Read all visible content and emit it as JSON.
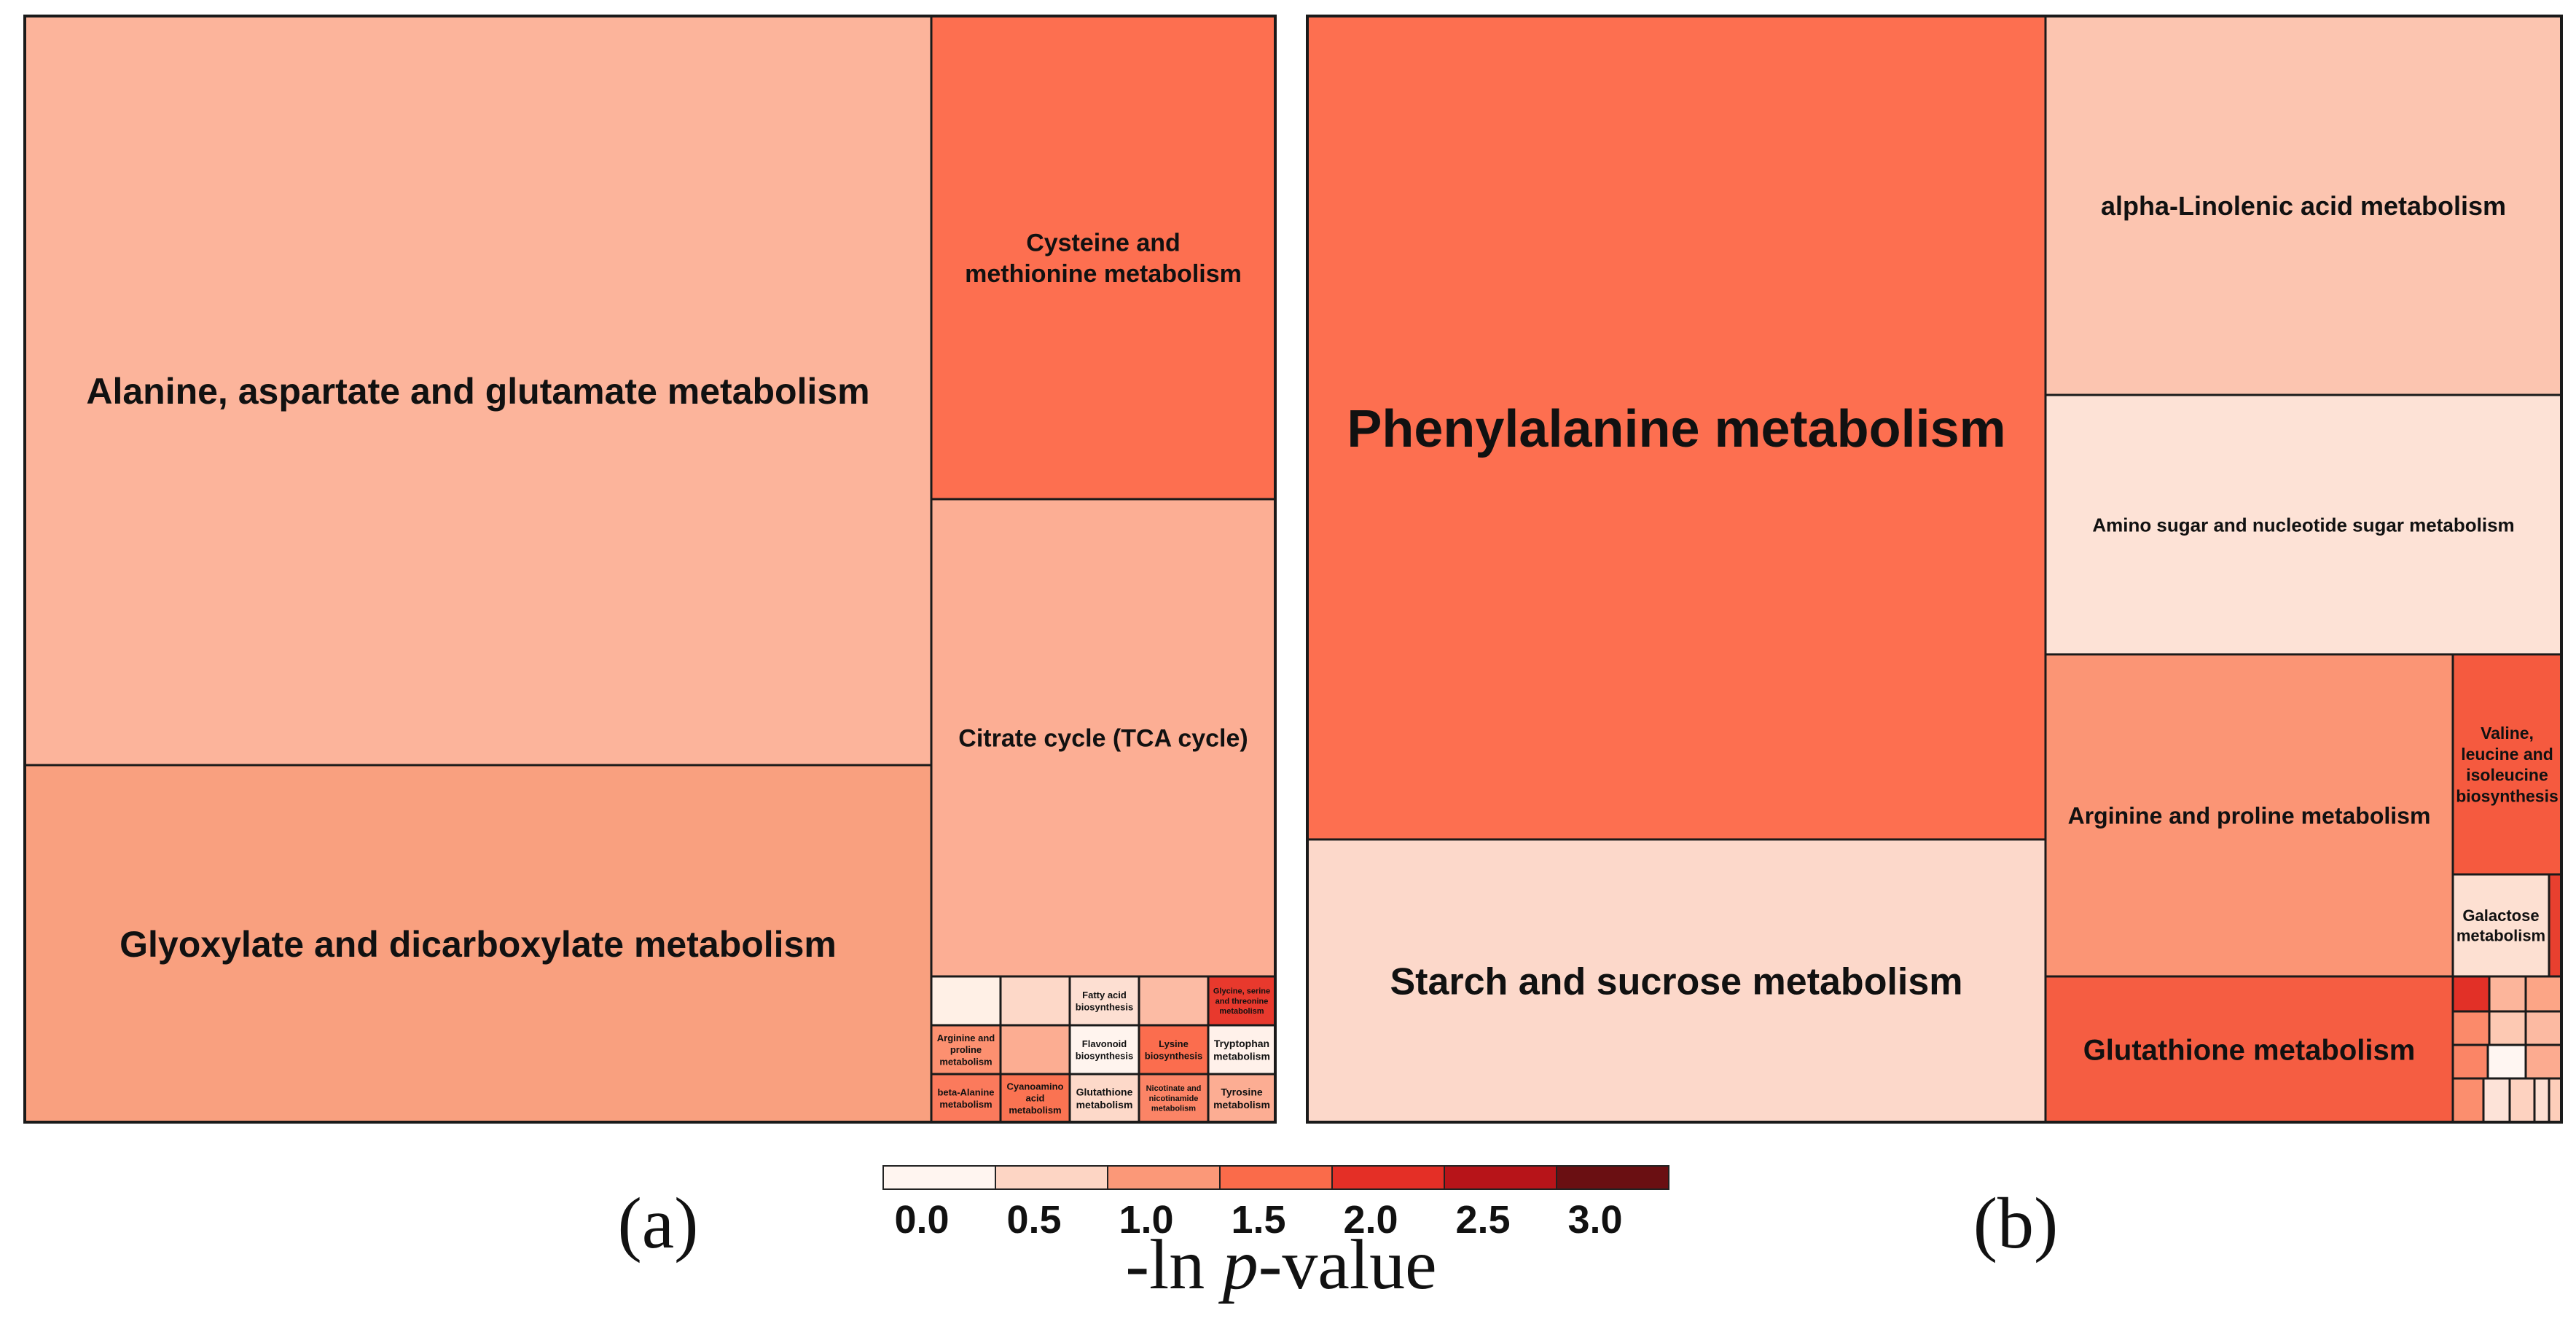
{
  "chart_data": [
    {
      "type": "treemap",
      "panel_label": "(a)",
      "items": [
        {
          "name": "Alanine, aspartate and glutamate metabolism",
          "color": "#fcb49b"
        },
        {
          "name": "Glyoxylate and dicarboxylate metabolism",
          "color": "#f9a07f"
        },
        {
          "name": "Cysteine and methionine metabolism",
          "color": "#fd6f50"
        },
        {
          "name": "Citrate cycle (TCA cycle)",
          "color": "#fcae94"
        },
        {
          "name": "",
          "color": "#fff0e6"
        },
        {
          "name": "",
          "color": "#fdd8c8"
        },
        {
          "name": "Fatty acid biosynthesis",
          "color": "#fddfd2"
        },
        {
          "name": "",
          "color": "#fcbba4"
        },
        {
          "name": "Glycine, serine and threonine metabolism",
          "color": "#e8392d"
        },
        {
          "name": "Arginine and proline metabolism",
          "color": "#fc9070"
        },
        {
          "name": "",
          "color": "#fcad92"
        },
        {
          "name": "Flavonoid biosynthesis",
          "color": "#fff4ee"
        },
        {
          "name": "Lysine biosynthesis",
          "color": "#fb6d4e"
        },
        {
          "name": "Tryptophan metabolism",
          "color": "#fff1ea"
        },
        {
          "name": "beta-Alanine metabolism",
          "color": "#fb7a5c"
        },
        {
          "name": "Cyanoamino acid metabolism",
          "color": "#fa7352"
        },
        {
          "name": "Glutathione metabolism",
          "color": "#fdd9c9"
        },
        {
          "name": "Nicotinate and nicotinamide metabolism",
          "color": "#fb8466"
        },
        {
          "name": "Tyrosine metabolism",
          "color": "#fcad93"
        }
      ]
    },
    {
      "type": "treemap",
      "panel_label": "(b)",
      "items": [
        {
          "name": "Phenylalanine metabolism",
          "color": "#fd6f50"
        },
        {
          "name": "Starch and sucrose metabolism",
          "color": "#fcd8ca"
        },
        {
          "name": "alpha-Linolenic acid metabolism",
          "color": "#fcc5b0"
        },
        {
          "name": "Amino sugar and nucleotide sugar metabolism",
          "color": "#fde2d6"
        },
        {
          "name": "Arginine and proline metabolism",
          "color": "#fb9575"
        },
        {
          "name": "Valine, leucine and isoleucine biosynthesis",
          "color": "#f55a3f"
        },
        {
          "name": "Galactose metabolism",
          "color": "#fde0d2"
        },
        {
          "name": "",
          "color": "#e8402f"
        },
        {
          "name": "Glutathione metabolism",
          "color": "#f55d42"
        },
        {
          "name": "",
          "color": "#e23027"
        },
        {
          "name": "",
          "color": "#fcb59b"
        },
        {
          "name": "",
          "color": "#fca586"
        },
        {
          "name": "",
          "color": "#fb8a6a"
        },
        {
          "name": "",
          "color": "#fdc9b3"
        },
        {
          "name": "",
          "color": "#fcbaa2"
        },
        {
          "name": "",
          "color": "#fb8566"
        },
        {
          "name": "",
          "color": "#fff6f2"
        },
        {
          "name": "",
          "color": "#fcab90"
        },
        {
          "name": "",
          "color": "#fb8e6e"
        },
        {
          "name": "",
          "color": "#fde3d8"
        },
        {
          "name": "",
          "color": "#fdd2c0"
        },
        {
          "name": "",
          "color": "#fde0d3"
        },
        {
          "name": "",
          "color": "#fdceba"
        }
      ]
    }
  ],
  "legend": {
    "title_prefix": "-ln ",
    "title_italic": "p",
    "title_suffix": "-value",
    "ticks": [
      "0.0",
      "0.5",
      "1.0",
      "1.5",
      "2.0",
      "2.5",
      "3.0"
    ],
    "colors": [
      "#fff5f0",
      "#fdd5c4",
      "#fb9878",
      "#fa6b4a",
      "#e42f26",
      "#b71419",
      "#6a0f12"
    ]
  }
}
